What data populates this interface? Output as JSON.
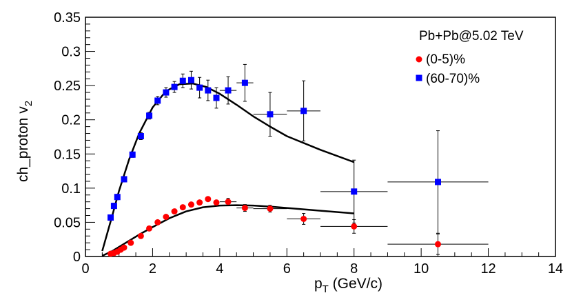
{
  "chart_data": {
    "type": "scatter",
    "title": "",
    "xlabel": {
      "main": "p",
      "sub": "T",
      "unit": " (GeV/c)"
    },
    "ylabel": {
      "main": "ch_proton v",
      "sub": "2"
    },
    "xlim": [
      0,
      14
    ],
    "ylim": [
      0,
      0.35
    ],
    "xticks": [
      0,
      2,
      4,
      6,
      8,
      10,
      12,
      14
    ],
    "yticks": [
      0,
      0.05,
      0.1,
      0.15,
      0.2,
      0.25,
      0.3,
      0.35
    ],
    "xtick_labels": [
      "0",
      "2",
      "4",
      "6",
      "8",
      "10",
      "12",
      "14"
    ],
    "ytick_labels": [
      "0",
      "0.05",
      "0.1",
      "0.15",
      "0.2",
      "0.25",
      "0.3",
      "0.35"
    ],
    "grid": false,
    "legend": {
      "position": "top-right",
      "header": "Pb+Pb@5.02 TeV"
    },
    "series": [
      {
        "name": "(0-5)%",
        "marker": "circle",
        "color": "#ff0000",
        "x": [
          0.75,
          0.85,
          0.95,
          1.05,
          1.15,
          1.35,
          1.65,
          1.9,
          2.15,
          2.4,
          2.65,
          2.9,
          3.15,
          3.4,
          3.65,
          3.9,
          4.25,
          4.75,
          5.5,
          6.5,
          8.0,
          10.5
        ],
        "y": [
          0.004,
          0.005,
          0.007,
          0.01,
          0.013,
          0.02,
          0.03,
          0.041,
          0.05,
          0.058,
          0.066,
          0.072,
          0.076,
          0.079,
          0.084,
          0.079,
          0.08,
          0.071,
          0.07,
          0.055,
          0.044,
          0.018
        ],
        "xerr": [
          0,
          0,
          0,
          0,
          0,
          0,
          0,
          0,
          0,
          0,
          0,
          0,
          0,
          0,
          0,
          0,
          0.25,
          0.25,
          0.5,
          0.5,
          1.0,
          1.5
        ],
        "yerr": [
          0.001,
          0.001,
          0.001,
          0.001,
          0.001,
          0.002,
          0.002,
          0.002,
          0.002,
          0.002,
          0.002,
          0.002,
          0.002,
          0.003,
          0.003,
          0.003,
          0.005,
          0.005,
          0.005,
          0.008,
          0.01,
          0.015
        ],
        "curve": {
          "x": [
            0.5,
            0.8,
            1.2,
            1.6,
            2.0,
            2.5,
            3.0,
            3.5,
            4.0,
            4.5,
            5.0,
            5.5,
            6.0,
            7.0,
            8.0
          ],
          "y": [
            0.001,
            0.008,
            0.02,
            0.032,
            0.043,
            0.056,
            0.066,
            0.072,
            0.0745,
            0.075,
            0.0745,
            0.073,
            0.071,
            0.067,
            0.063
          ]
        }
      },
      {
        "name": "(60-70)%",
        "marker": "square",
        "color": "#0000ff",
        "x": [
          0.75,
          0.85,
          0.95,
          1.15,
          1.4,
          1.65,
          1.9,
          2.15,
          2.4,
          2.65,
          2.9,
          3.15,
          3.4,
          3.65,
          3.9,
          4.25,
          4.75,
          5.5,
          6.5,
          8.0,
          10.5
        ],
        "y": [
          0.057,
          0.074,
          0.087,
          0.113,
          0.149,
          0.176,
          0.206,
          0.228,
          0.24,
          0.248,
          0.257,
          0.258,
          0.247,
          0.243,
          0.232,
          0.243,
          0.254,
          0.208,
          0.213,
          0.095,
          0.109
        ],
        "xerr": [
          0,
          0,
          0,
          0,
          0,
          0,
          0,
          0,
          0,
          0,
          0,
          0,
          0,
          0,
          0,
          0.25,
          0.25,
          0.5,
          0.5,
          1.0,
          1.5
        ],
        "yerr": [
          0.003,
          0.004,
          0.004,
          0.004,
          0.004,
          0.005,
          0.005,
          0.006,
          0.007,
          0.008,
          0.01,
          0.013,
          0.015,
          0.015,
          0.015,
          0.02,
          0.027,
          0.032,
          0.044,
          0.046,
          0.075
        ],
        "curve": {
          "x": [
            0.5,
            0.8,
            1.0,
            1.3,
            1.6,
            2.0,
            2.4,
            2.8,
            3.2,
            3.6,
            4.0,
            4.5,
            5.0,
            5.5,
            6.0,
            7.0,
            8.0
          ],
          "y": [
            0.008,
            0.06,
            0.096,
            0.142,
            0.18,
            0.218,
            0.242,
            0.252,
            0.253,
            0.248,
            0.238,
            0.222,
            0.205,
            0.19,
            0.176,
            0.156,
            0.138
          ]
        }
      }
    ]
  }
}
